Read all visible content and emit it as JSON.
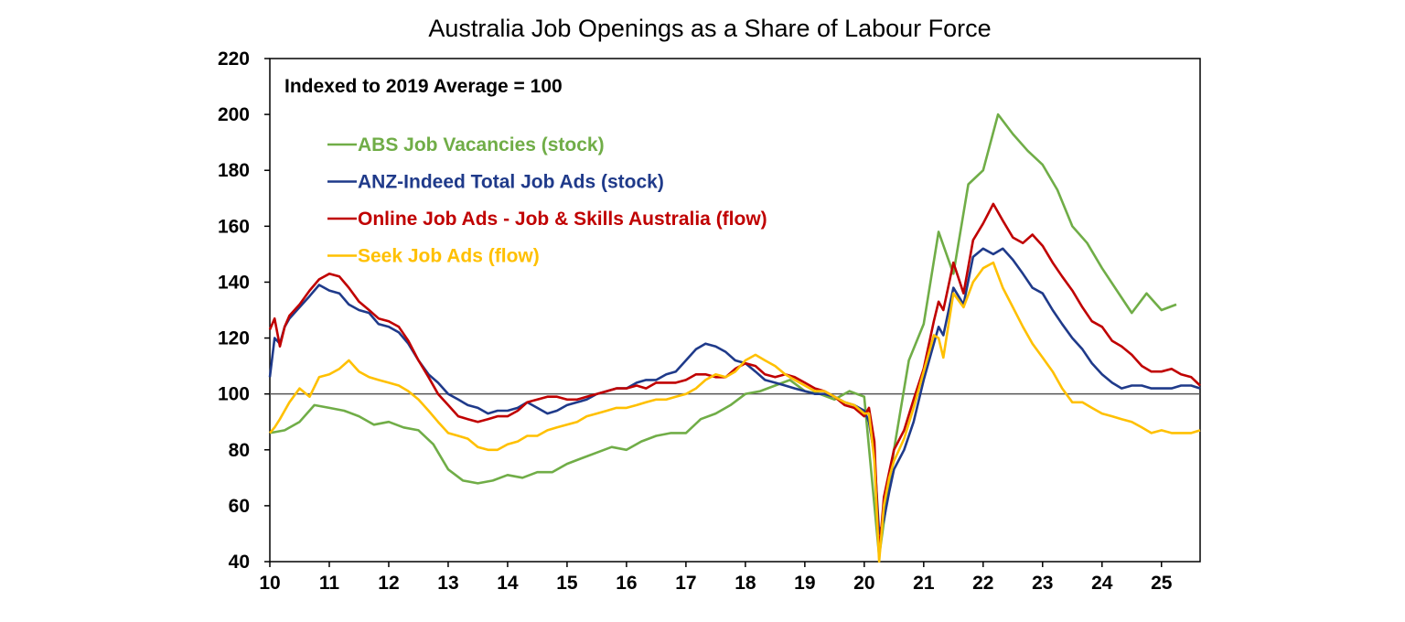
{
  "chart_data": {
    "type": "line",
    "title": "Australia Job Openings as a Share of Labour Force",
    "annotation": "Indexed to 2019 Average = 100",
    "xlabel": "",
    "ylabel": "",
    "xlim": [
      2010,
      2025.65
    ],
    "ylim": [
      40,
      220
    ],
    "yticks": [
      40,
      60,
      80,
      100,
      120,
      140,
      160,
      180,
      200,
      220
    ],
    "xticks": [
      {
        "value": 2010,
        "label": "10"
      },
      {
        "value": 2011,
        "label": "11"
      },
      {
        "value": 2012,
        "label": "12"
      },
      {
        "value": 2013,
        "label": "13"
      },
      {
        "value": 2014,
        "label": "14"
      },
      {
        "value": 2015,
        "label": "15"
      },
      {
        "value": 2016,
        "label": "16"
      },
      {
        "value": 2017,
        "label": "17"
      },
      {
        "value": 2018,
        "label": "18"
      },
      {
        "value": 2019,
        "label": "19"
      },
      {
        "value": 2020,
        "label": "20"
      },
      {
        "value": 2021,
        "label": "21"
      },
      {
        "value": 2022,
        "label": "22"
      },
      {
        "value": 2023,
        "label": "23"
      },
      {
        "value": 2024,
        "label": "24"
      },
      {
        "value": 2025,
        "label": "25"
      }
    ],
    "reference_line": 100,
    "grid": false,
    "legend_placement": "top-left",
    "series": [
      {
        "name": "ABS Job Vacancies (stock)",
        "color": "#70AD47",
        "x": [
          2010.0,
          2010.25,
          2010.5,
          2010.75,
          2011.0,
          2011.25,
          2011.5,
          2011.75,
          2012.0,
          2012.25,
          2012.5,
          2012.75,
          2013.0,
          2013.25,
          2013.5,
          2013.75,
          2014.0,
          2014.25,
          2014.5,
          2014.75,
          2015.0,
          2015.25,
          2015.5,
          2015.75,
          2016.0,
          2016.25,
          2016.5,
          2016.75,
          2017.0,
          2017.25,
          2017.5,
          2017.75,
          2018.0,
          2018.25,
          2018.5,
          2018.75,
          2019.0,
          2019.25,
          2019.5,
          2019.75,
          2020.0,
          2020.25,
          2020.5,
          2020.75,
          2021.0,
          2021.25,
          2021.5,
          2021.75,
          2022.0,
          2022.25,
          2022.5,
          2022.75,
          2023.0,
          2023.25,
          2023.5,
          2023.75,
          2024.0,
          2024.25,
          2024.5,
          2024.75,
          2025.0,
          2025.25
        ],
        "values": [
          86,
          87,
          90,
          96,
          95,
          94,
          92,
          89,
          90,
          88,
          87,
          82,
          73,
          69,
          68,
          69,
          71,
          70,
          72,
          72,
          75,
          77,
          79,
          81,
          80,
          83,
          85,
          86,
          86,
          91,
          93,
          96,
          100,
          101,
          103,
          105,
          101,
          100,
          98,
          101,
          99,
          42,
          80,
          112,
          125,
          158,
          143,
          175,
          180,
          200,
          193,
          187,
          182,
          173,
          160,
          154,
          145,
          137,
          129,
          136,
          130,
          132
        ]
      },
      {
        "name": "ANZ-Indeed Total Job Ads (stock)",
        "color": "#1F3A8A",
        "x": [
          2010.0,
          2010.08,
          2010.17,
          2010.25,
          2010.33,
          2010.5,
          2010.67,
          2010.83,
          2011.0,
          2011.17,
          2011.33,
          2011.5,
          2011.67,
          2011.83,
          2012.0,
          2012.17,
          2012.33,
          2012.5,
          2012.67,
          2012.83,
          2013.0,
          2013.17,
          2013.33,
          2013.5,
          2013.67,
          2013.83,
          2014.0,
          2014.17,
          2014.33,
          2014.5,
          2014.67,
          2014.83,
          2015.0,
          2015.17,
          2015.33,
          2015.5,
          2015.67,
          2015.83,
          2016.0,
          2016.17,
          2016.33,
          2016.5,
          2016.67,
          2016.83,
          2017.0,
          2017.17,
          2017.33,
          2017.5,
          2017.67,
          2017.83,
          2018.0,
          2018.17,
          2018.33,
          2018.5,
          2018.67,
          2018.83,
          2019.0,
          2019.17,
          2019.33,
          2019.5,
          2019.67,
          2019.83,
          2020.0,
          2020.08,
          2020.17,
          2020.25,
          2020.33,
          2020.42,
          2020.5,
          2020.67,
          2020.83,
          2021.0,
          2021.17,
          2021.25,
          2021.33,
          2021.5,
          2021.67,
          2021.83,
          2022.0,
          2022.17,
          2022.33,
          2022.5,
          2022.67,
          2022.83,
          2023.0,
          2023.17,
          2023.33,
          2023.5,
          2023.67,
          2023.83,
          2024.0,
          2024.17,
          2024.33,
          2024.5,
          2024.67,
          2024.83,
          2025.0,
          2025.17,
          2025.33,
          2025.5,
          2025.65
        ],
        "values": [
          106,
          120,
          118,
          124,
          127,
          131,
          135,
          139,
          137,
          136,
          132,
          130,
          129,
          125,
          124,
          122,
          118,
          112,
          107,
          104,
          100,
          98,
          96,
          95,
          93,
          94,
          94,
          95,
          97,
          95,
          93,
          94,
          96,
          97,
          98,
          100,
          101,
          102,
          102,
          104,
          105,
          105,
          107,
          108,
          112,
          116,
          118,
          117,
          115,
          112,
          111,
          108,
          105,
          104,
          103,
          102,
          101,
          100,
          100,
          99,
          97,
          96,
          94,
          90,
          78,
          50,
          55,
          65,
          73,
          80,
          90,
          105,
          118,
          124,
          121,
          138,
          132,
          149,
          152,
          150,
          152,
          148,
          143,
          138,
          136,
          130,
          125,
          120,
          116,
          111,
          107,
          104,
          102,
          103,
          103,
          102,
          102,
          102,
          103,
          103,
          102
        ]
      },
      {
        "name": "Online Job Ads - Job & Skills Australia (flow)",
        "color": "#C00000",
        "x": [
          2010.0,
          2010.08,
          2010.17,
          2010.25,
          2010.33,
          2010.5,
          2010.67,
          2010.83,
          2011.0,
          2011.17,
          2011.33,
          2011.5,
          2011.67,
          2011.83,
          2012.0,
          2012.17,
          2012.33,
          2012.5,
          2012.67,
          2012.83,
          2013.0,
          2013.17,
          2013.33,
          2013.5,
          2013.67,
          2013.83,
          2014.0,
          2014.17,
          2014.33,
          2014.5,
          2014.67,
          2014.83,
          2015.0,
          2015.17,
          2015.33,
          2015.5,
          2015.67,
          2015.83,
          2016.0,
          2016.17,
          2016.33,
          2016.5,
          2016.67,
          2016.83,
          2017.0,
          2017.17,
          2017.33,
          2017.5,
          2017.67,
          2017.83,
          2018.0,
          2018.17,
          2018.33,
          2018.5,
          2018.67,
          2018.83,
          2019.0,
          2019.17,
          2019.33,
          2019.5,
          2019.67,
          2019.83,
          2020.0,
          2020.08,
          2020.17,
          2020.25,
          2020.33,
          2020.42,
          2020.5,
          2020.67,
          2020.83,
          2021.0,
          2021.17,
          2021.25,
          2021.33,
          2021.5,
          2021.67,
          2021.83,
          2022.0,
          2022.17,
          2022.33,
          2022.5,
          2022.67,
          2022.83,
          2023.0,
          2023.17,
          2023.33,
          2023.5,
          2023.67,
          2023.83,
          2024.0,
          2024.17,
          2024.33,
          2024.5,
          2024.67,
          2024.83,
          2025.0,
          2025.17,
          2025.33,
          2025.5,
          2025.65
        ],
        "values": [
          123,
          127,
          117,
          124,
          128,
          132,
          137,
          141,
          143,
          142,
          138,
          133,
          130,
          127,
          126,
          124,
          119,
          112,
          106,
          100,
          96,
          92,
          91,
          90,
          91,
          92,
          92,
          94,
          97,
          98,
          99,
          99,
          98,
          98,
          99,
          100,
          101,
          102,
          102,
          103,
          102,
          104,
          104,
          104,
          105,
          107,
          107,
          106,
          106,
          109,
          111,
          110,
          107,
          106,
          107,
          106,
          104,
          102,
          101,
          99,
          96,
          95,
          92,
          95,
          83,
          42,
          63,
          72,
          80,
          87,
          98,
          109,
          126,
          133,
          130,
          147,
          136,
          155,
          161,
          168,
          162,
          156,
          154,
          157,
          153,
          147,
          142,
          137,
          131,
          126,
          124,
          119,
          117,
          114,
          110,
          108,
          108,
          109,
          107,
          106,
          103
        ]
      },
      {
        "name": "Seek Job Ads (flow)",
        "color": "#FFC000",
        "x": [
          2010.0,
          2010.08,
          2010.17,
          2010.25,
          2010.33,
          2010.5,
          2010.67,
          2010.83,
          2011.0,
          2011.17,
          2011.33,
          2011.5,
          2011.67,
          2011.83,
          2012.0,
          2012.17,
          2012.33,
          2012.5,
          2012.67,
          2012.83,
          2013.0,
          2013.17,
          2013.33,
          2013.5,
          2013.67,
          2013.83,
          2014.0,
          2014.17,
          2014.33,
          2014.5,
          2014.67,
          2014.83,
          2015.0,
          2015.17,
          2015.33,
          2015.5,
          2015.67,
          2015.83,
          2016.0,
          2016.17,
          2016.33,
          2016.5,
          2016.67,
          2016.83,
          2017.0,
          2017.17,
          2017.33,
          2017.5,
          2017.67,
          2017.83,
          2018.0,
          2018.17,
          2018.33,
          2018.5,
          2018.67,
          2018.83,
          2019.0,
          2019.17,
          2019.33,
          2019.5,
          2019.67,
          2019.83,
          2020.0,
          2020.08,
          2020.17,
          2020.25,
          2020.33,
          2020.42,
          2020.5,
          2020.67,
          2020.83,
          2021.0,
          2021.17,
          2021.25,
          2021.33,
          2021.5,
          2021.67,
          2021.83,
          2022.0,
          2022.17,
          2022.33,
          2022.5,
          2022.67,
          2022.83,
          2023.0,
          2023.17,
          2023.33,
          2023.5,
          2023.67,
          2023.83,
          2024.0,
          2024.17,
          2024.33,
          2024.5,
          2024.67,
          2024.83,
          2025.0,
          2025.17,
          2025.33,
          2025.5,
          2025.65
        ],
        "values": [
          86,
          88,
          91,
          94,
          97,
          102,
          99,
          106,
          107,
          109,
          112,
          108,
          106,
          105,
          104,
          103,
          101,
          98,
          94,
          90,
          86,
          85,
          84,
          81,
          80,
          80,
          82,
          83,
          85,
          85,
          87,
          88,
          89,
          90,
          92,
          93,
          94,
          95,
          95,
          96,
          97,
          98,
          98,
          99,
          100,
          102,
          105,
          107,
          106,
          108,
          112,
          114,
          112,
          110,
          107,
          105,
          103,
          101,
          101,
          99,
          97,
          96,
          93,
          93,
          76,
          40,
          60,
          70,
          76,
          84,
          95,
          108,
          121,
          120,
          113,
          136,
          131,
          140,
          145,
          147,
          138,
          131,
          124,
          118,
          113,
          108,
          102,
          97,
          97,
          95,
          93,
          92,
          91,
          90,
          88,
          86,
          87,
          86,
          86,
          86,
          87
        ]
      }
    ]
  }
}
